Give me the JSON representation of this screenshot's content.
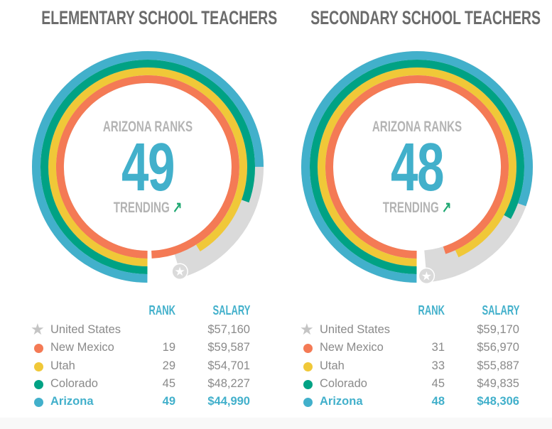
{
  "colors": {
    "blue": "#42b0cb",
    "green": "#00a284",
    "yellow": "#f0c838",
    "orange": "#f47a55",
    "gray": "#dadada",
    "star": "#c4c4c4"
  },
  "chart_data": [
    {
      "type": "radial-bar",
      "title": "ELEMENTARY SCHOOL TEACHERS",
      "center_label": "ARIZONA RANKS",
      "center_value": "49",
      "trend_label": "TRENDING",
      "trend_icon": "arrow-up-right-icon",
      "max": 60000,
      "columns": {
        "rank": "RANK",
        "salary": "SALARY"
      },
      "rows": [
        {
          "name": "United States",
          "rank": "",
          "salary": "$57,160",
          "value": 57160,
          "marker": "star",
          "color": "#c4c4c4"
        },
        {
          "name": "New Mexico",
          "rank": "19",
          "salary": "$59,587",
          "value": 59587,
          "marker": "dot",
          "color": "#f47a55"
        },
        {
          "name": "Utah",
          "rank": "29",
          "salary": "$54,701",
          "value": 54701,
          "marker": "dot",
          "color": "#f0c838"
        },
        {
          "name": "Colorado",
          "rank": "45",
          "salary": "$48,227",
          "value": 48227,
          "marker": "dot",
          "color": "#00a284"
        },
        {
          "name": "Arizona",
          "rank": "49",
          "salary": "$44,990",
          "value": 44990,
          "marker": "dot",
          "color": "#42b0cb",
          "highlight": true
        }
      ]
    },
    {
      "type": "radial-bar",
      "title": "SECONDARY SCHOOL TEACHERS",
      "center_label": "ARIZONA RANKS",
      "center_value": "48",
      "trend_label": "TRENDING",
      "trend_icon": "arrow-up-right-icon",
      "max": 60000,
      "columns": {
        "rank": "RANK",
        "salary": "SALARY"
      },
      "rows": [
        {
          "name": "United States",
          "rank": "",
          "salary": "$59,170",
          "value": 59170,
          "marker": "star",
          "color": "#c4c4c4"
        },
        {
          "name": "New Mexico",
          "rank": "31",
          "salary": "$56,970",
          "value": 56970,
          "marker": "dot",
          "color": "#f47a55"
        },
        {
          "name": "Utah",
          "rank": "33",
          "salary": "$55,887",
          "value": 55887,
          "marker": "dot",
          "color": "#f0c838"
        },
        {
          "name": "Colorado",
          "rank": "45",
          "salary": "$49,835",
          "value": 49835,
          "marker": "dot",
          "color": "#00a284"
        },
        {
          "name": "Arizona",
          "rank": "48",
          "salary": "$48,306",
          "value": 48306,
          "marker": "dot",
          "color": "#42b0cb",
          "highlight": true
        }
      ]
    }
  ]
}
